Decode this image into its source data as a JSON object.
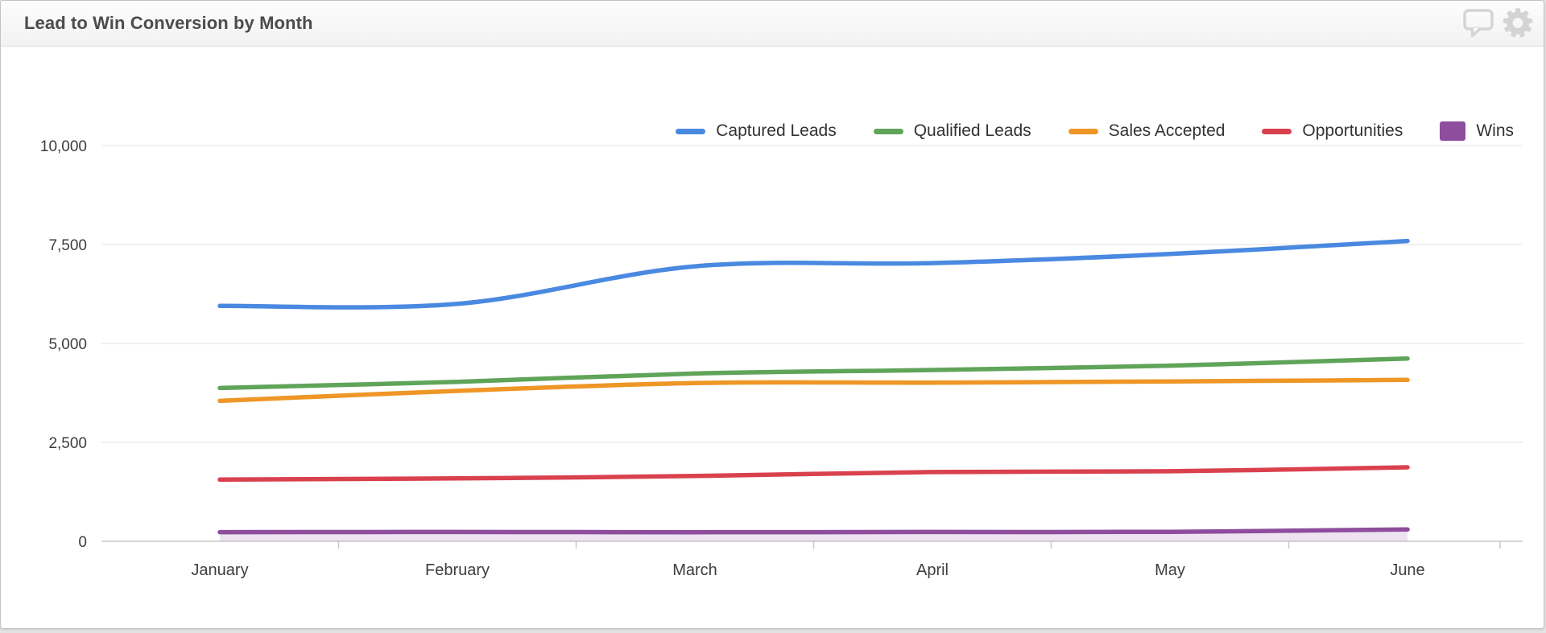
{
  "header": {
    "title": "Lead to Win Conversion by Month",
    "actions": [
      {
        "icon": "comment-icon"
      },
      {
        "icon": "settings-icon"
      }
    ],
    "icon_color": "#d4d4d4"
  },
  "chart_data": {
    "type": "line",
    "title": "Lead to Win Conversion by Month",
    "categories": [
      "January",
      "February",
      "March",
      "April",
      "May",
      "June"
    ],
    "series": [
      {
        "name": "Captured Leads",
        "color": "#4a89e0",
        "marker": "line",
        "values": [
          5950,
          6000,
          6950,
          7030,
          7260,
          7590
        ]
      },
      {
        "name": "Qualified Leads",
        "color": "#60a45a",
        "marker": "line",
        "values": [
          3875,
          4030,
          4240,
          4330,
          4440,
          4620
        ]
      },
      {
        "name": "Sales Accepted",
        "color": "#ee9626",
        "marker": "line",
        "values": [
          3550,
          3800,
          4000,
          4010,
          4040,
          4080
        ]
      },
      {
        "name": "Opportunities",
        "color": "#d9414e",
        "marker": "line",
        "values": [
          1560,
          1590,
          1650,
          1750,
          1770,
          1870
        ]
      },
      {
        "name": "Wins",
        "color": "#8e4d9d",
        "marker": "square",
        "area": true,
        "fill_opacity": 0.15,
        "values": [
          230,
          235,
          230,
          235,
          240,
          300
        ]
      }
    ],
    "ylim": [
      0,
      10000
    ],
    "yticks": [
      0,
      2500,
      5000,
      7500,
      10000
    ],
    "ytick_labels": [
      "0",
      "2,500",
      "5,000",
      "7,500",
      "10,000"
    ],
    "grid": true,
    "legend_position": "top-right",
    "style_colors": {
      "gridline": "#e6e6e6",
      "axis_line": "#c9c9c9",
      "axis_text": "#3d3d3d",
      "legend_text": "#333333"
    }
  }
}
